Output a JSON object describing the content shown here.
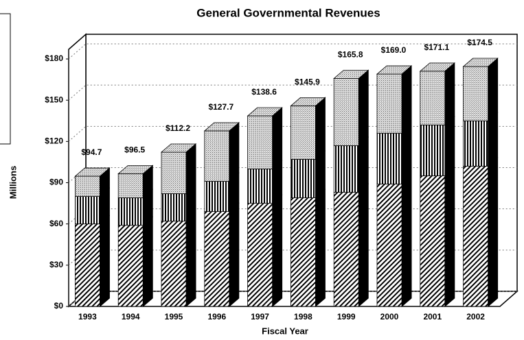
{
  "chart_data": {
    "type": "bar3d_stacked",
    "title": "General Governmental Revenues",
    "xlabel": "Fiscal Year",
    "ylabel": "Millions",
    "categories": [
      "1993",
      "1994",
      "1995",
      "1996",
      "1997",
      "1998",
      "1999",
      "2000",
      "2001",
      "2002"
    ],
    "series": [
      {
        "color": "#000000",
        "pattern": "diagonal",
        "values": [
          60,
          59,
          62,
          69,
          75,
          79,
          83,
          89,
          95,
          102
        ]
      },
      {
        "color": "#000000",
        "pattern": "vertical",
        "values": [
          20,
          20,
          20,
          22,
          25,
          28,
          34,
          37,
          37,
          33
        ]
      },
      {
        "color": "#888888",
        "pattern": "dotted",
        "values": [
          14.7,
          17.5,
          30.2,
          36.7,
          38.6,
          38.9,
          48.8,
          43,
          39.1,
          39.5
        ]
      }
    ],
    "totals": [
      94.7,
      96.5,
      112.2,
      127.7,
      138.6,
      145.9,
      165.8,
      169.0,
      171.1,
      174.5
    ],
    "total_labels": [
      "$94.7",
      "$96.5",
      "$112.2",
      "$127.7",
      "$138.6",
      "$145.9",
      "$165.8",
      "$169.0",
      "$171.1",
      "$174.5"
    ],
    "ylim": [
      0,
      180
    ],
    "yticks": [
      {
        "value": 0,
        "label": "$0"
      },
      {
        "value": 30,
        "label": "$30"
      },
      {
        "value": 60,
        "label": "$60"
      },
      {
        "value": 90,
        "label": "$90"
      },
      {
        "value": 120,
        "label": "$120"
      },
      {
        "value": 150,
        "label": "$150"
      },
      {
        "value": 180,
        "label": "$180"
      }
    ],
    "grid": true
  }
}
